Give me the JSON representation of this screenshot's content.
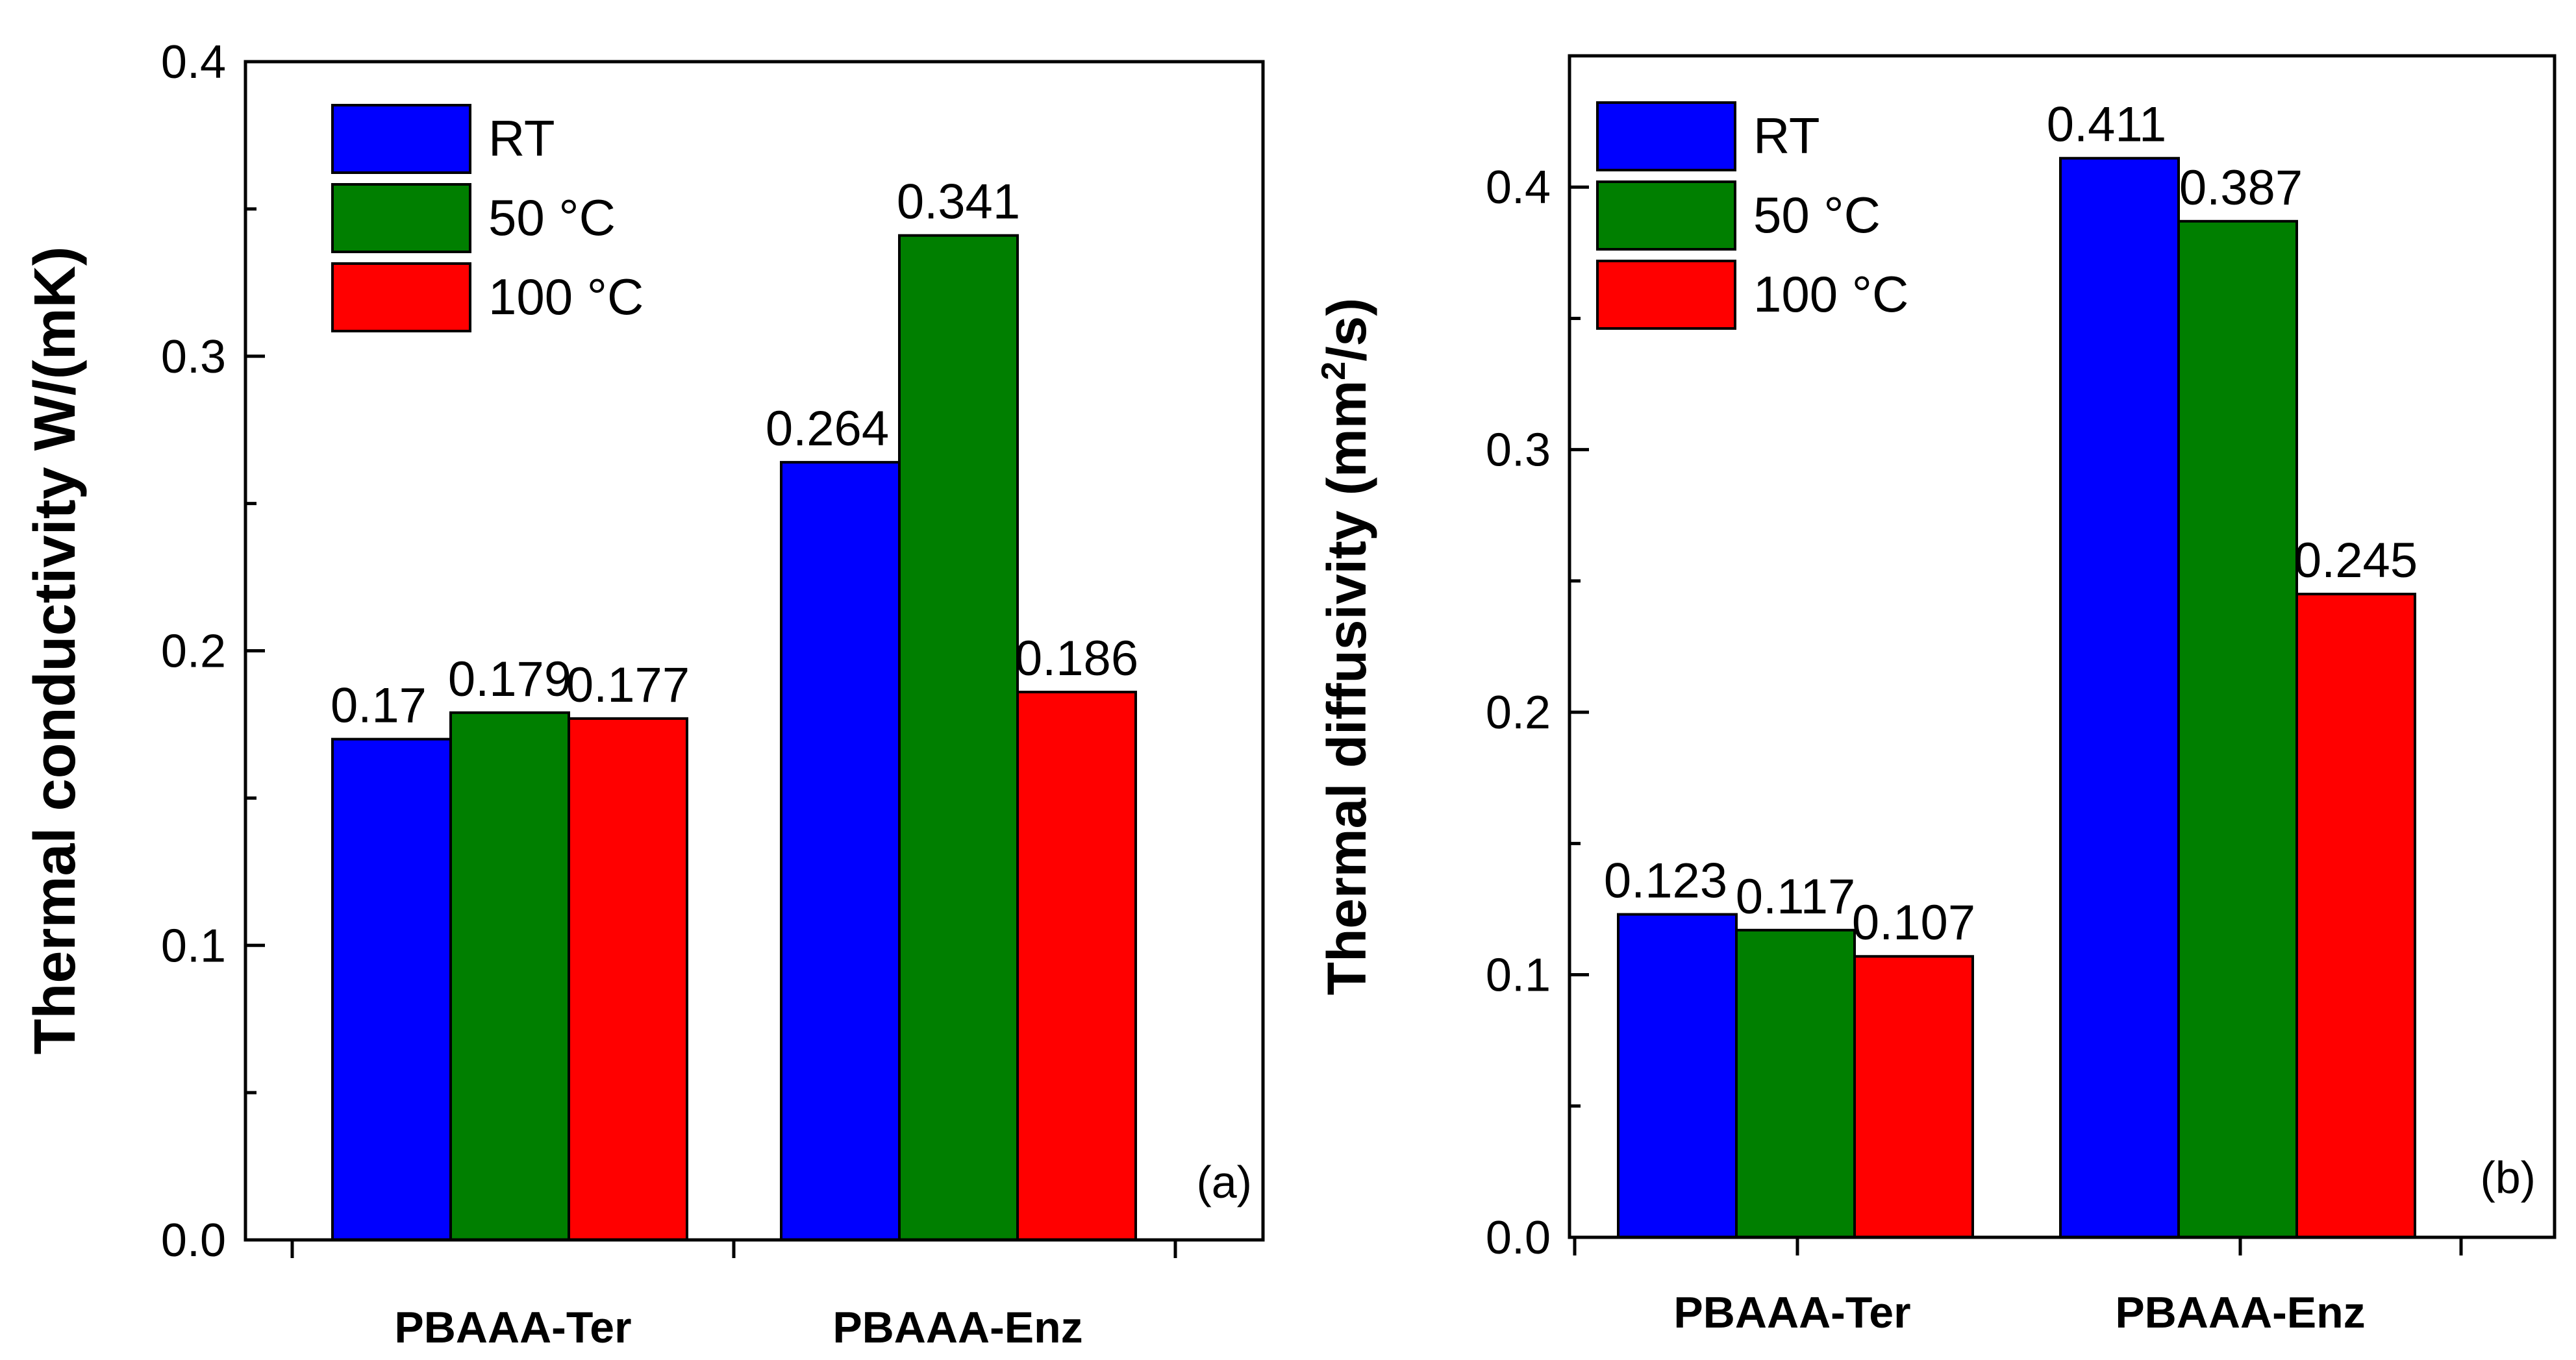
{
  "chart_data": [
    {
      "type": "bar",
      "panel_label": "(a)",
      "title": "",
      "xlabel": "",
      "ylabel": "Thermal conductivity W/(mK)",
      "ylim": [
        0,
        0.4
      ],
      "yticks": [
        "0.0",
        "0.1",
        "0.2",
        "0.3",
        "0.4"
      ],
      "categories": [
        "PBAAA-Ter",
        "PBAAA-Enz"
      ],
      "series": [
        {
          "name": "RT",
          "color": "#0000ff",
          "values": [
            0.17,
            0.264
          ],
          "labels": [
            "0.17",
            "0.264"
          ]
        },
        {
          "name": "50 °C",
          "color": "#007f00",
          "values": [
            0.179,
            0.341
          ],
          "labels": [
            "0.179",
            "0.341"
          ]
        },
        {
          "name": "100 °C",
          "color": "#ff0000",
          "values": [
            0.177,
            0.186
          ],
          "labels": [
            "0.177",
            "0.186"
          ]
        }
      ],
      "legend_position": "top-left"
    },
    {
      "type": "bar",
      "panel_label": "(b)",
      "title": "",
      "xlabel": "",
      "ylabel_main": "Thermal diffusivity (mm",
      "ylabel_sup": "2",
      "ylabel_end": "/s)",
      "ylim": [
        0,
        0.45
      ],
      "yticks": [
        "0.0",
        "0.1",
        "0.2",
        "0.3",
        "0.4"
      ],
      "categories": [
        "PBAAA-Ter",
        "PBAAA-Enz"
      ],
      "series": [
        {
          "name": "RT",
          "color": "#0000ff",
          "values": [
            0.123,
            0.411
          ],
          "labels": [
            "0.123",
            "0.411"
          ]
        },
        {
          "name": "50 °C",
          "color": "#007f00",
          "values": [
            0.117,
            0.387
          ],
          "labels": [
            "0.117",
            "0.387"
          ]
        },
        {
          "name": "100 °C",
          "color": "#ff0000",
          "values": [
            0.107,
            0.245
          ],
          "labels": [
            "0.107",
            "0.245"
          ]
        }
      ],
      "legend_position": "top-left"
    }
  ]
}
